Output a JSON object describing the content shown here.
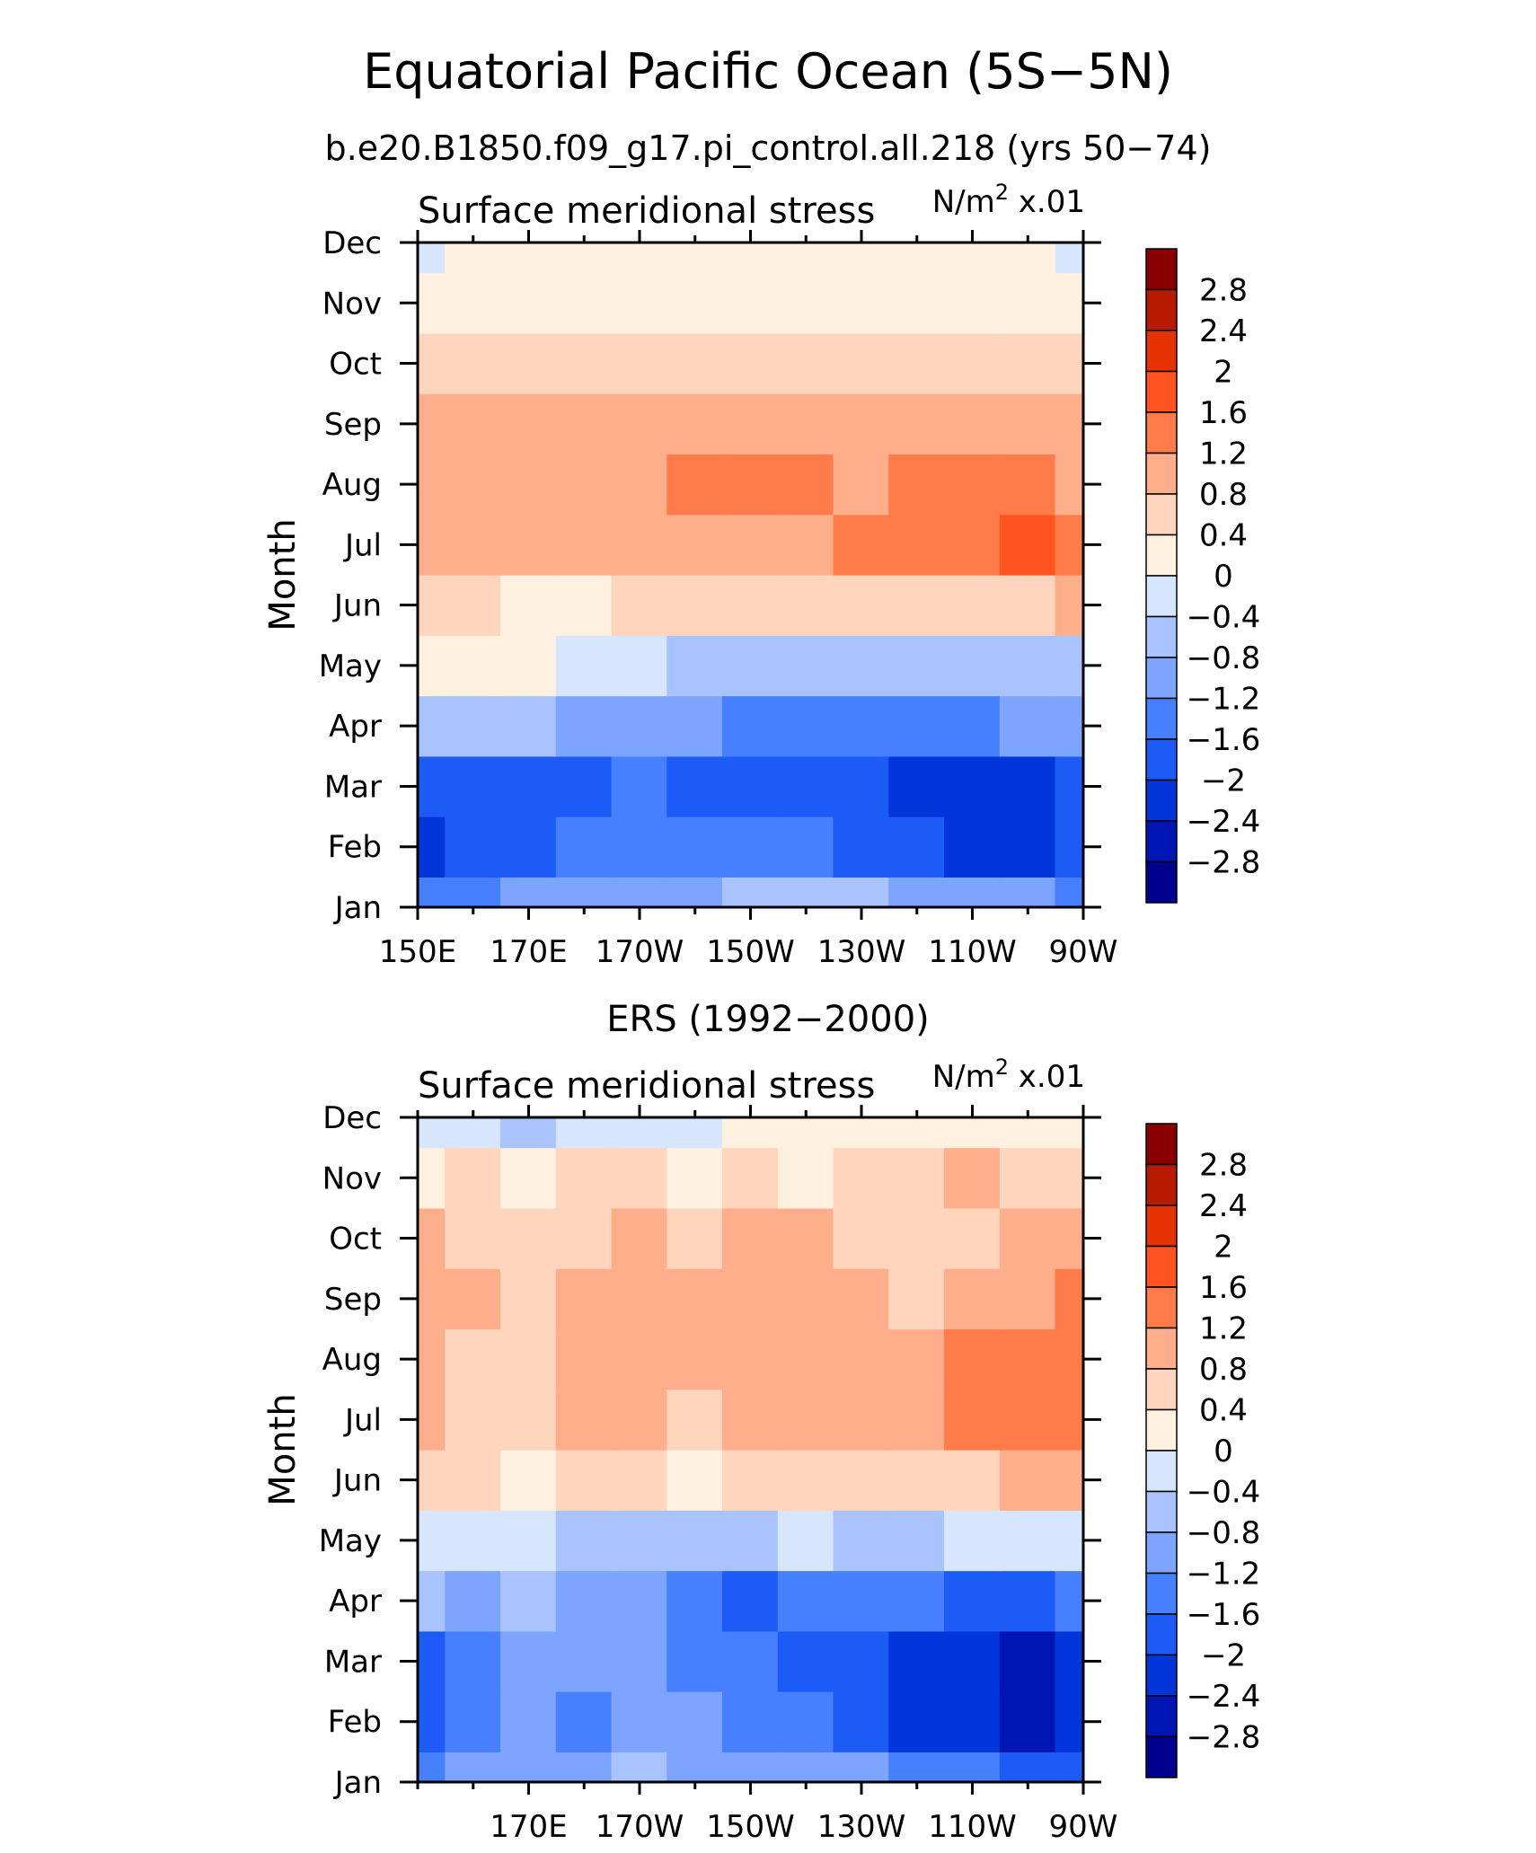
{
  "main_title": "Equatorial Pacific Ocean (5S−5N)",
  "subtitle": "b.e20.B1850.f09_g17.pi_control.all.218 (yrs 50−74)",
  "colors": {
    "levels": [
      "#00008e",
      "#0016b4",
      "#0336da",
      "#1d5bf6",
      "#4680ff",
      "#7da4ff",
      "#a9c3ff",
      "#d7e6ff",
      "#fff0e0",
      "#ffd5bd",
      "#ffae8b",
      "#ff7c4a",
      "#ff5420",
      "#e53200",
      "#b81a00",
      "#8a0000"
    ]
  },
  "chart_data": [
    {
      "type": "heatmap",
      "name": "top-panel",
      "title": "Surface meridional stress",
      "units_prefix": "N/m",
      "units_sup": "2",
      "units_suffix": " x.01",
      "ylabel": "Month",
      "xlim": [
        150,
        270
      ],
      "x_tick_labels": [
        "150E",
        "170E",
        "170W",
        "150W",
        "130W",
        "110W",
        "90W"
      ],
      "x_tick_values": [
        150,
        170,
        190,
        210,
        230,
        250,
        270
      ],
      "y_tick_labels": [
        "Jan",
        "Feb",
        "Mar",
        "Apr",
        "May",
        "Jun",
        "Jul",
        "Aug",
        "Sep",
        "Oct",
        "Nov",
        "Dec"
      ],
      "longitudes": [
        150,
        160,
        170,
        180,
        190,
        200,
        210,
        220,
        230,
        240,
        250,
        260,
        270
      ],
      "values": [
        [
          -1.5,
          -1.4,
          -1.2,
          -1.1,
          -1.0,
          -0.9,
          -0.8,
          -0.8,
          -0.8,
          -0.9,
          -1.0,
          -1.2,
          -1.6
        ],
        [
          -2.1,
          -1.9,
          -1.7,
          -1.5,
          -1.3,
          -1.4,
          -1.5,
          -1.6,
          -1.8,
          -2.0,
          -2.3,
          -2.4,
          -2.0
        ],
        [
          -1.9,
          -1.7,
          -1.7,
          -1.7,
          -1.6,
          -1.7,
          -1.8,
          -1.8,
          -1.9,
          -2.1,
          -2.3,
          -2.2,
          -1.8
        ],
        [
          -0.5,
          -0.7,
          -0.8,
          -0.9,
          -1.0,
          -1.2,
          -1.3,
          -1.3,
          -1.3,
          -1.3,
          -1.3,
          -1.2,
          -1.1
        ],
        [
          0.2,
          0.1,
          0.0,
          -0.2,
          -0.4,
          -0.6,
          -0.7,
          -0.7,
          -0.7,
          -0.6,
          -0.6,
          -0.6,
          -0.6
        ],
        [
          0.6,
          0.5,
          0.3,
          0.3,
          0.4,
          0.4,
          0.5,
          0.5,
          0.5,
          0.6,
          0.6,
          0.7,
          0.8
        ],
        [
          1.1,
          0.9,
          0.9,
          0.9,
          0.9,
          0.9,
          1.0,
          1.1,
          1.2,
          1.3,
          1.4,
          1.6,
          1.2
        ],
        [
          1.1,
          0.9,
          1.0,
          1.0,
          1.1,
          1.2,
          1.3,
          1.2,
          1.1,
          1.3,
          1.3,
          1.4,
          1.1
        ],
        [
          1.0,
          0.8,
          0.9,
          1.0,
          1.0,
          1.0,
          1.0,
          0.9,
          0.9,
          0.9,
          0.9,
          1.0,
          0.9
        ],
        [
          0.6,
          0.6,
          0.6,
          0.7,
          0.7,
          0.6,
          0.6,
          0.5,
          0.5,
          0.5,
          0.6,
          0.7,
          0.6
        ],
        [
          0.2,
          0.3,
          0.3,
          0.3,
          0.3,
          0.3,
          0.3,
          0.2,
          0.2,
          0.2,
          0.3,
          0.3,
          0.2
        ],
        [
          -0.1,
          0.1,
          0.1,
          0.1,
          0.1,
          0.1,
          0.0,
          0.0,
          0.0,
          0.1,
          0.1,
          0.0,
          -0.1
        ]
      ]
    },
    {
      "type": "heatmap",
      "name": "bottom-panel",
      "title": "Surface meridional stress",
      "center_title": "ERS (1992−2000)",
      "units_prefix": "N/m",
      "units_sup": "2",
      "units_suffix": " x.01",
      "ylabel": "Month",
      "xlim": [
        150,
        270
      ],
      "x_tick_labels": [
        "170E",
        "170W",
        "150W",
        "130W",
        "110W",
        "90W"
      ],
      "x_tick_values": [
        170,
        190,
        210,
        230,
        250,
        270
      ],
      "y_tick_labels": [
        "Jan",
        "Feb",
        "Mar",
        "Apr",
        "May",
        "Jun",
        "Jul",
        "Aug",
        "Sep",
        "Oct",
        "Nov",
        "Dec"
      ],
      "longitudes": [
        150,
        160,
        170,
        180,
        190,
        200,
        210,
        220,
        230,
        240,
        250,
        260,
        270
      ],
      "values": [
        [
          -1.3,
          -1.2,
          -0.9,
          -1.0,
          -0.7,
          -0.9,
          -1.0,
          -1.0,
          -1.2,
          -1.4,
          -1.6,
          -1.8,
          -1.9
        ],
        [
          -1.8,
          -1.5,
          -1.0,
          -1.3,
          -1.1,
          -1.2,
          -1.4,
          -1.6,
          -1.8,
          -2.1,
          -2.3,
          -2.5,
          -2.3
        ],
        [
          -1.7,
          -1.4,
          -1.1,
          -1.2,
          -1.1,
          -1.3,
          -1.6,
          -1.9,
          -2.0,
          -2.2,
          -2.4,
          -2.6,
          -2.3
        ],
        [
          -0.8,
          -0.9,
          -0.8,
          -0.9,
          -1.0,
          -1.3,
          -1.7,
          -1.6,
          -1.5,
          -1.6,
          -1.7,
          -1.8,
          -1.5
        ],
        [
          -0.2,
          -0.3,
          -0.4,
          -0.5,
          -0.6,
          -0.6,
          -0.5,
          -0.4,
          -0.5,
          -0.5,
          -0.4,
          -0.4,
          -0.3
        ],
        [
          0.5,
          0.4,
          0.3,
          0.5,
          0.4,
          0.3,
          0.4,
          0.5,
          0.4,
          0.4,
          0.6,
          0.9,
          0.9
        ],
        [
          0.9,
          0.6,
          0.6,
          0.8,
          1.0,
          0.5,
          0.9,
          1.1,
          1.0,
          0.9,
          1.3,
          1.4,
          1.3
        ],
        [
          1.0,
          0.7,
          0.7,
          0.9,
          1.0,
          0.8,
          0.9,
          0.9,
          0.9,
          0.8,
          1.2,
          1.3,
          1.3
        ],
        [
          1.1,
          0.8,
          0.7,
          0.9,
          1.1,
          0.9,
          1.0,
          1.0,
          1.0,
          0.7,
          0.9,
          1.1,
          1.3
        ],
        [
          0.9,
          0.6,
          0.5,
          0.7,
          0.8,
          0.6,
          0.9,
          0.8,
          0.7,
          0.5,
          0.6,
          0.9,
          1.1
        ],
        [
          0.3,
          0.5,
          0.3,
          0.4,
          0.4,
          0.3,
          0.4,
          0.3,
          0.5,
          0.7,
          0.8,
          0.6,
          0.7
        ],
        [
          -0.3,
          -0.2,
          -0.5,
          -0.1,
          -0.2,
          -0.1,
          0.1,
          0.1,
          0.0,
          0.2,
          0.2,
          0.1,
          0.0
        ]
      ]
    }
  ],
  "colorbar": {
    "levels": [
      -3.2,
      -2.8,
      -2.4,
      -2.0,
      -1.6,
      -1.2,
      -0.8,
      -0.4,
      0.0,
      0.4,
      0.8,
      1.2,
      1.6,
      2.0,
      2.4,
      2.8,
      3.2
    ],
    "labels": [
      "2.8",
      "2.4",
      "2",
      "1.6",
      "1.2",
      "0.8",
      "0.4",
      "0",
      "−0.4",
      "−0.8",
      "−1.2",
      "−1.6",
      "−2",
      "−2.4",
      "−2.8"
    ]
  }
}
